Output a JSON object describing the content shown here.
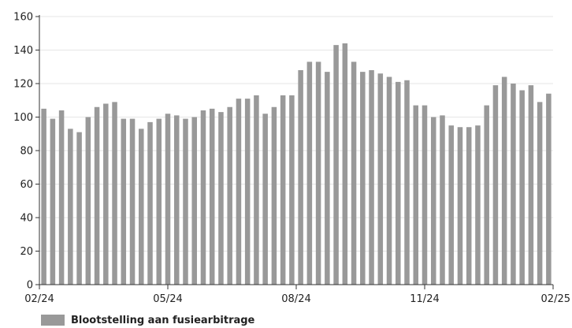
{
  "chart_data": {
    "type": "bar",
    "ylim": [
      0,
      160
    ],
    "yticks": [
      0,
      20,
      40,
      60,
      80,
      100,
      120,
      140,
      160
    ],
    "xticks": [
      "02/24",
      "05/24",
      "08/24",
      "11/24",
      "02/25"
    ],
    "grid": true,
    "legend_position": "bottom-left",
    "bar_color": "#999999",
    "series": [
      {
        "name": "Blootstelling aan fusiearbitrage",
        "values": [
          105,
          99,
          104,
          93,
          91,
          100,
          106,
          108,
          109,
          99,
          99,
          93,
          97,
          99,
          102,
          101,
          99,
          100,
          104,
          105,
          103,
          106,
          111,
          111,
          113,
          102,
          106,
          113,
          113,
          128,
          133,
          133,
          127,
          143,
          144,
          133,
          127,
          128,
          126,
          124,
          121,
          122,
          107,
          107,
          100,
          101,
          95,
          94,
          94,
          95,
          107,
          119,
          124,
          120,
          116,
          119,
          109,
          114
        ]
      }
    ]
  }
}
